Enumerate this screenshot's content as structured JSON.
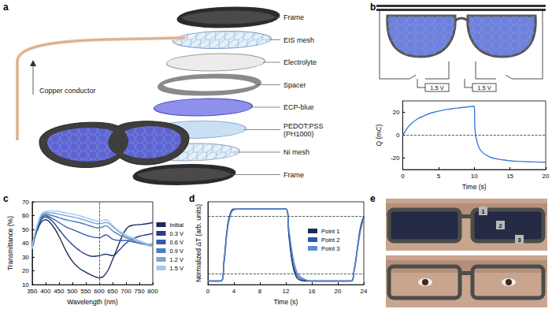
{
  "figure": {
    "panels": {
      "a": {
        "label": "a",
        "layers": [
          "Frame",
          "EIS mesh",
          "Electrolyte",
          "Spacer",
          "ECP-blue",
          "PEDOT:PSS\n(PH1000)",
          "Ni mesh",
          "Frame"
        ],
        "conductor": "Copper conductor"
      },
      "b": {
        "label": "b",
        "battery_labels": [
          "1.5 V",
          "1.5 V"
        ]
      },
      "c": {
        "label": "c"
      },
      "d": {
        "label": "d"
      },
      "e": {
        "label": "e",
        "markers": [
          "1",
          "2",
          "3"
        ]
      }
    }
  },
  "chart_data": [
    {
      "type": "line",
      "x_label": "Time (s)",
      "y_label": "Q (mC)",
      "x": [
        0,
        0.5,
        1,
        2,
        3,
        4,
        5,
        6,
        7,
        8,
        9,
        10,
        10.1,
        10.5,
        11,
        12,
        13,
        14,
        15,
        16,
        18,
        20
      ],
      "values": [
        0,
        5,
        9,
        14,
        17,
        19.5,
        21,
        22.3,
        23.3,
        24,
        24.7,
        25.3,
        5,
        -8,
        -14,
        -18.5,
        -20.5,
        -21.5,
        -22.3,
        -22.8,
        -23.3,
        -23.6
      ],
      "color": "#3b7dd8",
      "xlim": [
        0,
        20
      ],
      "xticks": [
        0,
        5,
        10,
        15,
        20
      ],
      "ylim": [
        -30,
        30
      ],
      "yticks": [
        -20,
        0,
        20
      ],
      "hlines": [
        0
      ],
      "grid": false
    },
    {
      "type": "line",
      "x_label": "Wavelength (nm)",
      "y_label": "Transmittance (%)",
      "x": [
        350,
        375,
        400,
        425,
        450,
        475,
        500,
        525,
        550,
        575,
        600,
        625,
        650,
        675,
        700,
        725,
        750,
        775,
        800
      ],
      "series": [
        {
          "name": "Initial",
          "color": "#1b2a5c",
          "values": [
            36,
            52,
            57,
            53,
            45,
            35,
            27,
            22,
            19,
            16.5,
            15,
            18,
            28,
            40,
            50,
            53,
            53.5,
            54,
            55
          ]
        },
        {
          "name": "0.3 V",
          "color": "#243f86",
          "values": [
            36,
            53,
            59,
            56,
            50,
            44,
            39,
            35,
            32,
            30.5,
            31,
            32,
            31,
            35,
            40,
            43,
            45,
            46,
            47
          ]
        },
        {
          "name": "0.6 V",
          "color": "#2f5ea8",
          "values": [
            36,
            54,
            60,
            58,
            55,
            52,
            50,
            48,
            46,
            44.5,
            44,
            46,
            43,
            42,
            42,
            41,
            40,
            39.5,
            39
          ]
        },
        {
          "name": "0.9 V",
          "color": "#4a7fc0",
          "values": [
            36,
            55,
            61,
            60,
            58.5,
            57,
            56,
            55,
            53.5,
            52,
            51,
            52.5,
            49,
            46,
            44,
            42,
            40,
            39,
            38
          ]
        },
        {
          "name": "1.2 V",
          "color": "#7ba6d6",
          "values": [
            36,
            56,
            62,
            62,
            61,
            60,
            59,
            58,
            56.5,
            55,
            54,
            55,
            52,
            48,
            45,
            43,
            41,
            39,
            37.5
          ]
        },
        {
          "name": "1.5 V",
          "color": "#a9c8e8",
          "values": [
            36,
            57,
            63,
            63.5,
            63,
            62,
            61,
            60,
            58.5,
            57,
            56,
            57,
            53,
            49,
            46,
            44,
            42,
            40,
            38
          ]
        }
      ],
      "xlim": [
        350,
        800
      ],
      "xticks": [
        350,
        400,
        450,
        500,
        550,
        600,
        650,
        700,
        750,
        800
      ],
      "ylim": [
        10,
        70
      ],
      "yticks": [
        10,
        20,
        30,
        40,
        50,
        60,
        70
      ],
      "vlines": [
        600
      ],
      "grid": false,
      "legend": "right"
    },
    {
      "type": "line",
      "x_label": "Time (s)",
      "y_label": "Normalized ΔT (arb. units)",
      "x": [
        0,
        1,
        2,
        2.5,
        3,
        3.5,
        4,
        5,
        8,
        12,
        12.5,
        13,
        13.5,
        14,
        15,
        16,
        20,
        22,
        22.5,
        23,
        23.5,
        24
      ],
      "series": [
        {
          "name": "Point 1",
          "color": "#1b2a5c",
          "values": [
            0,
            0,
            0,
            0.3,
            0.75,
            0.95,
            1,
            1,
            1,
            1,
            0.6,
            0.25,
            0.08,
            0.02,
            0,
            0,
            0,
            0,
            0.15,
            0.45,
            0.75,
            0.9
          ]
        },
        {
          "name": "Point 2",
          "color": "#2a5aa8",
          "values": [
            0,
            0,
            0,
            0.28,
            0.72,
            0.94,
            0.99,
            1,
            1,
            1,
            0.65,
            0.3,
            0.12,
            0.05,
            0.01,
            0,
            0,
            0,
            0.14,
            0.43,
            0.72,
            0.88
          ]
        },
        {
          "name": "Point 3",
          "color": "#5b8fd0",
          "values": [
            0,
            0,
            0,
            0.25,
            0.7,
            0.92,
            0.99,
            1,
            1,
            1,
            0.7,
            0.38,
            0.18,
            0.08,
            0.02,
            0,
            0,
            0,
            0.13,
            0.42,
            0.7,
            0.87
          ]
        }
      ],
      "xlim": [
        0,
        24
      ],
      "xticks": [
        0,
        4,
        8,
        12,
        16,
        20,
        24
      ],
      "ylim": [
        -0.05,
        1.1
      ],
      "hlines": [
        0.1,
        0.9
      ],
      "tick_labels": "x",
      "grid": false,
      "legend": "right"
    }
  ]
}
